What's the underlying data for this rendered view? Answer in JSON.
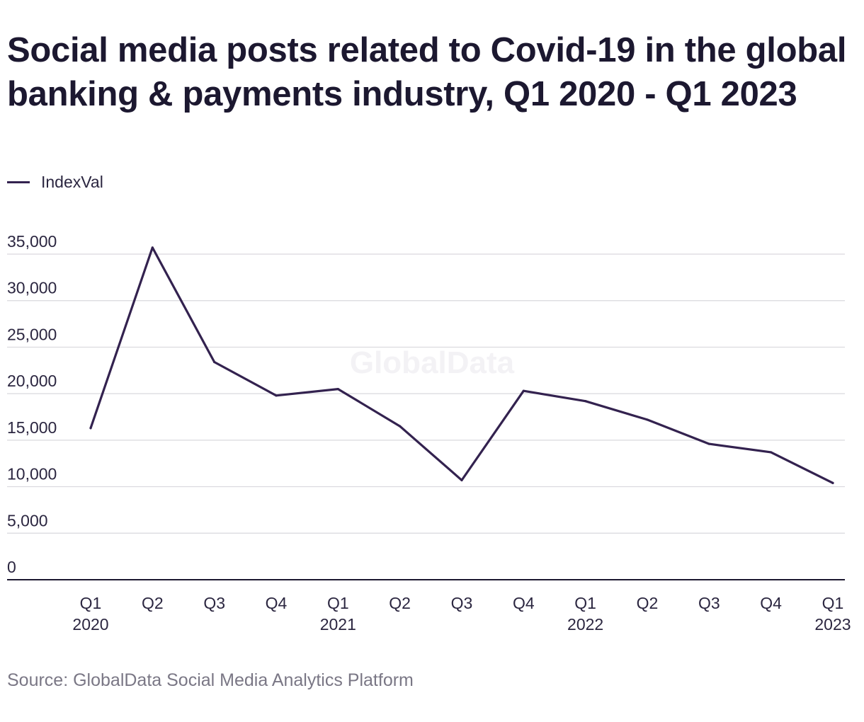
{
  "chart_data": {
    "type": "line",
    "title": "Social media posts related to Covid-19 in the global banking & payments industry, Q1 2020 - Q1 2023",
    "categories": [
      {
        "quarter": "Q1",
        "year": "2020"
      },
      {
        "quarter": "Q2",
        "year": ""
      },
      {
        "quarter": "Q3",
        "year": ""
      },
      {
        "quarter": "Q4",
        "year": ""
      },
      {
        "quarter": "Q1",
        "year": "2021"
      },
      {
        "quarter": "Q2",
        "year": ""
      },
      {
        "quarter": "Q3",
        "year": ""
      },
      {
        "quarter": "Q4",
        "year": ""
      },
      {
        "quarter": "Q1",
        "year": "2022"
      },
      {
        "quarter": "Q2",
        "year": ""
      },
      {
        "quarter": "Q3",
        "year": ""
      },
      {
        "quarter": "Q4",
        "year": ""
      },
      {
        "quarter": "Q1",
        "year": "2023"
      }
    ],
    "series": [
      {
        "name": "IndexVal",
        "color": "#33224f",
        "values": [
          16300,
          35700,
          23400,
          19800,
          20500,
          16500,
          10700,
          20300,
          19200,
          17200,
          14600,
          13700,
          10400
        ]
      }
    ],
    "ylim": [
      0,
      35000
    ],
    "yticks": [
      {
        "value": 0,
        "label": "0"
      },
      {
        "value": 5000,
        "label": "5,000"
      },
      {
        "value": 10000,
        "label": "10,000"
      },
      {
        "value": 15000,
        "label": "15,000"
      },
      {
        "value": 20000,
        "label": "20,000"
      },
      {
        "value": 25000,
        "label": "25,000"
      },
      {
        "value": 30000,
        "label": "30,000"
      },
      {
        "value": 35000,
        "label": "35,000"
      }
    ],
    "xlabel": "",
    "ylabel": "",
    "grid": true,
    "legend": "top-left",
    "watermark": "GlobalData",
    "source": "Source: GlobalData Social Media Analytics Platform"
  }
}
